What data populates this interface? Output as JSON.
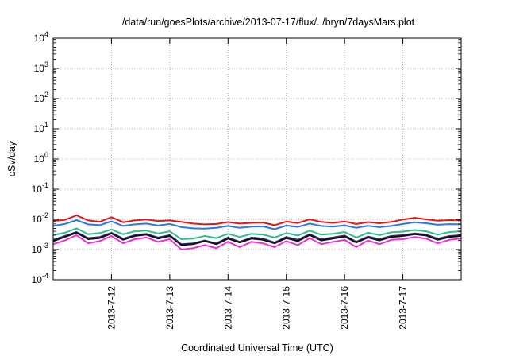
{
  "chart_data": {
    "type": "line",
    "title": "/data/run/goesPlots/archive/2013-07-17/flux/../bryn/7daysMars.plot",
    "xlabel": "Coordinated Universal Time (UTC)",
    "ylabel": "cSv/day",
    "yscale": "log",
    "ylim": [
      0.0001,
      10000
    ],
    "xlim": [
      0,
      7
    ],
    "x_ticks": [
      {
        "label": "2013-7-12",
        "x": 1
      },
      {
        "label": "2013-7-13",
        "x": 2
      },
      {
        "label": "2013-7-14",
        "x": 3
      },
      {
        "label": "2013-7-15",
        "x": 4
      },
      {
        "label": "2013-7-16",
        "x": 5
      },
      {
        "label": "2013-7-17",
        "x": 6
      }
    ],
    "y_ticks": [
      {
        "base": "10",
        "exp": "-4",
        "value": 0.0001
      },
      {
        "base": "10",
        "exp": "-3",
        "value": 0.001
      },
      {
        "base": "10",
        "exp": "-2",
        "value": 0.01
      },
      {
        "base": "10",
        "exp": "-1",
        "value": 0.1
      },
      {
        "base": "10",
        "exp": "0",
        "value": 1
      },
      {
        "base": "10",
        "exp": "1",
        "value": 10
      },
      {
        "base": "10",
        "exp": "2",
        "value": 100
      },
      {
        "base": "10",
        "exp": "3",
        "value": 1000
      },
      {
        "base": "10",
        "exp": "4",
        "value": 10000
      }
    ],
    "grid": true,
    "legend": "none",
    "x": [
      0.0,
      0.2,
      0.4,
      0.6,
      0.8,
      1.0,
      1.2,
      1.4,
      1.6,
      1.8,
      2.0,
      2.2,
      2.4,
      2.6,
      2.8,
      3.0,
      3.2,
      3.4,
      3.6,
      3.8,
      4.0,
      4.2,
      4.4,
      4.6,
      4.8,
      5.0,
      5.2,
      5.4,
      5.6,
      5.8,
      6.0,
      6.2,
      6.4,
      6.6,
      6.8,
      7.0
    ],
    "series": [
      {
        "color": "#e8141c",
        "values": [
          0.0088,
          0.0096,
          0.0135,
          0.0092,
          0.0083,
          0.0118,
          0.008,
          0.0092,
          0.0098,
          0.0088,
          0.0092,
          0.0082,
          0.0072,
          0.0068,
          0.007,
          0.0081,
          0.0072,
          0.0076,
          0.0078,
          0.0064,
          0.0084,
          0.0075,
          0.01,
          0.0082,
          0.0076,
          0.0085,
          0.007,
          0.0081,
          0.0074,
          0.0082,
          0.0098,
          0.0112,
          0.01,
          0.009,
          0.0094,
          0.0092
        ]
      },
      {
        "color": "#2a78e8",
        "values": [
          0.006,
          0.007,
          0.0094,
          0.0068,
          0.0064,
          0.0086,
          0.006,
          0.0068,
          0.0072,
          0.0062,
          0.007,
          0.0055,
          0.005,
          0.0049,
          0.0052,
          0.006,
          0.0052,
          0.0057,
          0.0058,
          0.0047,
          0.0062,
          0.0056,
          0.0072,
          0.006,
          0.0057,
          0.0063,
          0.0052,
          0.0061,
          0.0055,
          0.006,
          0.007,
          0.008,
          0.0074,
          0.0066,
          0.0069,
          0.0068
        ]
      },
      {
        "color": "#2fbf8a",
        "values": [
          0.003,
          0.0036,
          0.005,
          0.0032,
          0.0035,
          0.0046,
          0.0032,
          0.004,
          0.0042,
          0.0034,
          0.004,
          0.0022,
          0.0023,
          0.0028,
          0.0024,
          0.0033,
          0.0026,
          0.0033,
          0.0031,
          0.0025,
          0.0035,
          0.0029,
          0.0042,
          0.0031,
          0.0033,
          0.0038,
          0.0025,
          0.0036,
          0.003,
          0.0037,
          0.0039,
          0.0044,
          0.004,
          0.0031,
          0.0038,
          0.004
        ]
      },
      {
        "color": "#3a2b7a",
        "values": [
          0.0021,
          0.0028,
          0.0038,
          0.0024,
          0.0026,
          0.0036,
          0.0023,
          0.003,
          0.0033,
          0.0025,
          0.003,
          0.0015,
          0.0016,
          0.002,
          0.0016,
          0.0025,
          0.0018,
          0.0025,
          0.0023,
          0.0017,
          0.0026,
          0.0021,
          0.0032,
          0.0022,
          0.0025,
          0.0029,
          0.0018,
          0.0027,
          0.0022,
          0.0028,
          0.003,
          0.0034,
          0.0031,
          0.0023,
          0.0028,
          0.003
        ]
      },
      {
        "color": "#111111",
        "values": [
          0.0019,
          0.0026,
          0.0036,
          0.0022,
          0.0024,
          0.0034,
          0.0021,
          0.0028,
          0.0031,
          0.0023,
          0.0028,
          0.0014,
          0.0015,
          0.0019,
          0.0015,
          0.0023,
          0.0017,
          0.0023,
          0.0021,
          0.0016,
          0.0024,
          0.0019,
          0.003,
          0.002,
          0.0023,
          0.0027,
          0.0017,
          0.0025,
          0.002,
          0.0026,
          0.0028,
          0.0032,
          0.0029,
          0.0021,
          0.0026,
          0.0028
        ]
      },
      {
        "color": "#ee2fd8",
        "values": [
          0.0015,
          0.002,
          0.003,
          0.0016,
          0.0019,
          0.0028,
          0.0016,
          0.0022,
          0.0025,
          0.0018,
          0.0022,
          0.001,
          0.0011,
          0.0014,
          0.0011,
          0.0018,
          0.0012,
          0.0018,
          0.0016,
          0.0012,
          0.0019,
          0.0014,
          0.0024,
          0.0015,
          0.0018,
          0.0021,
          0.0012,
          0.002,
          0.0015,
          0.0021,
          0.0022,
          0.0026,
          0.0023,
          0.0016,
          0.0021,
          0.0023
        ]
      }
    ]
  }
}
